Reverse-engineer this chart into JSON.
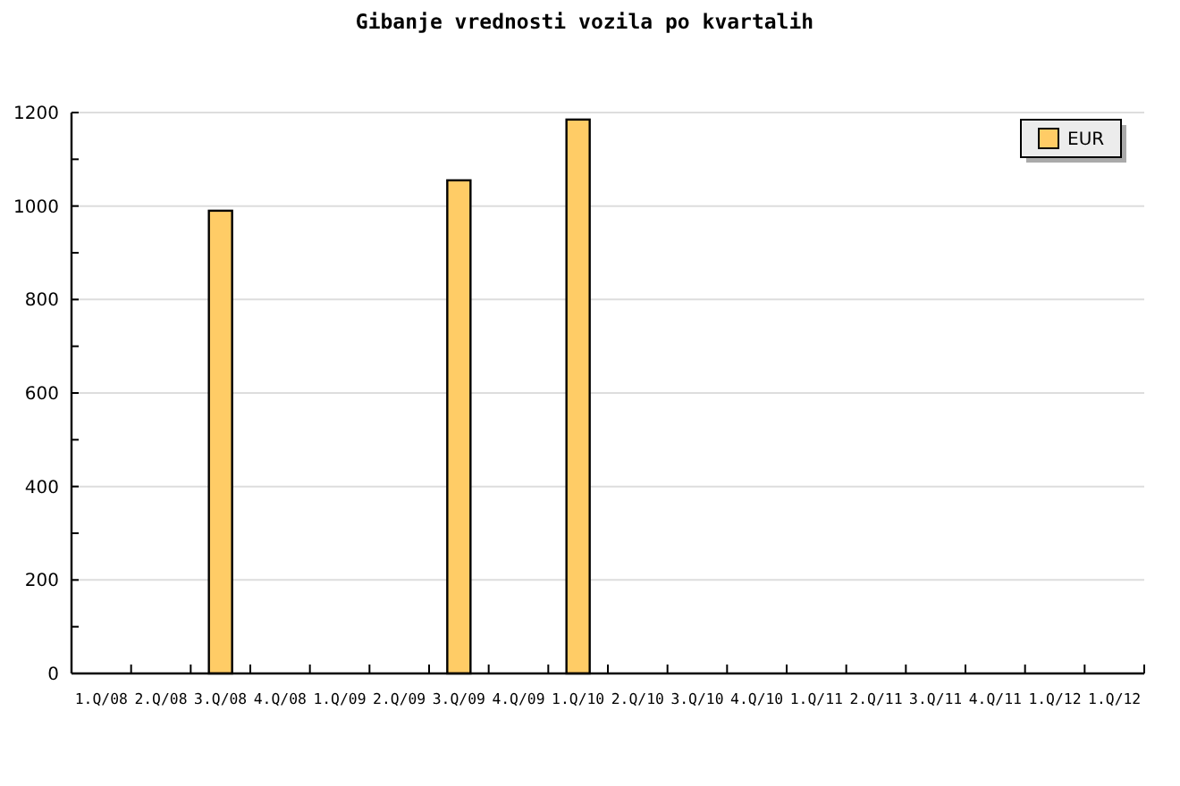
{
  "chart_data": {
    "type": "bar",
    "title": "Gibanje vrednosti vozila po kvartalih",
    "categories": [
      "1.Q/08",
      "2.Q/08",
      "3.Q/08",
      "4.Q/08",
      "1.Q/09",
      "2.Q/09",
      "3.Q/09",
      "4.Q/09",
      "1.Q/10",
      "2.Q/10",
      "3.Q/10",
      "4.Q/10",
      "1.Q/11",
      "2.Q/11",
      "3.Q/11",
      "4.Q/11",
      "1.Q/12",
      "1.Q/12"
    ],
    "series": [
      {
        "name": "EUR",
        "color": "#ffcc66",
        "values": [
          null,
          null,
          990,
          null,
          null,
          null,
          1055,
          null,
          1185,
          null,
          null,
          null,
          null,
          null,
          null,
          null,
          null,
          null
        ]
      }
    ],
    "ylim": [
      0,
      1200
    ],
    "yticks": [
      0,
      {
        "value": 100,
        "label": null
      },
      200,
      {
        "value": 300,
        "label": null
      },
      400,
      {
        "value": 500,
        "label": null
      },
      600,
      {
        "value": 700,
        "label": null
      },
      800,
      {
        "value": 900,
        "label": null
      },
      1000,
      {
        "value": 1100,
        "label": null
      },
      1200
    ],
    "grid": "y",
    "legend": "top right"
  }
}
